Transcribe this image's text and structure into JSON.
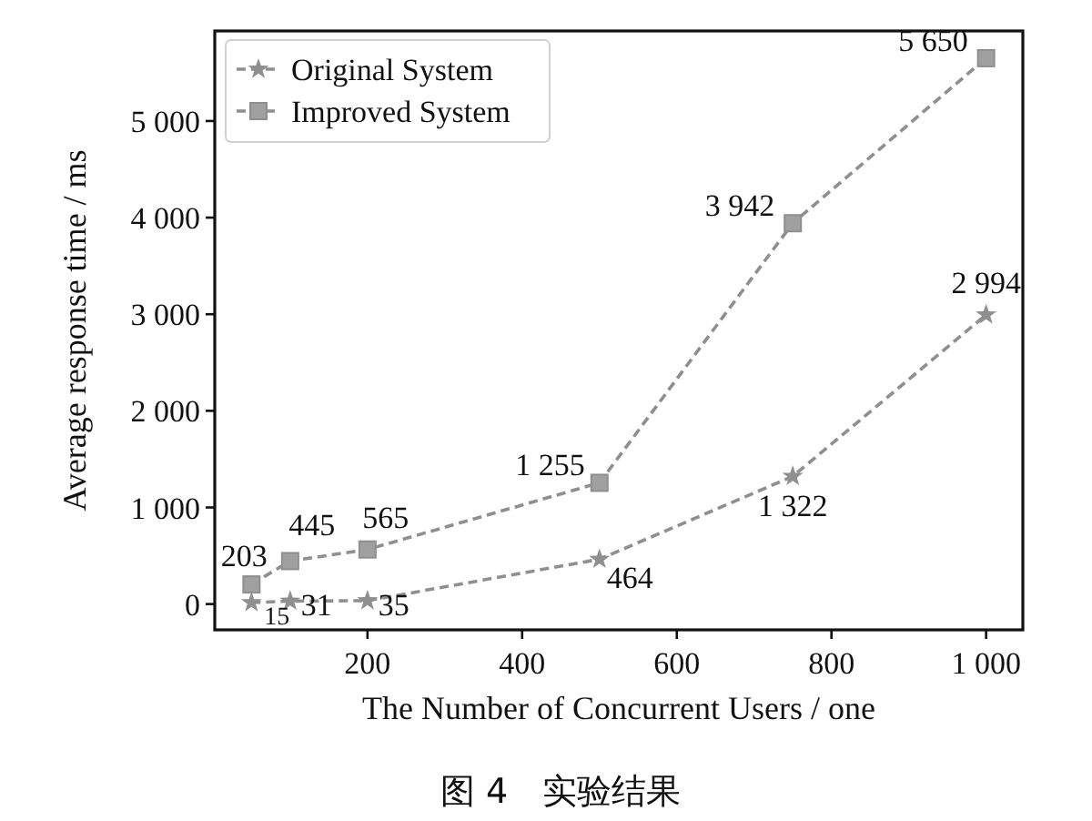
{
  "chart_data": {
    "type": "line",
    "xlabel": "The Number of Concurrent Users / one",
    "ylabel": "Average response time / ms",
    "x": [
      50,
      100,
      200,
      500,
      750,
      1000
    ],
    "series": [
      {
        "name": "Original System",
        "color": "#8f8f8f",
        "marker": "star",
        "values": [
          15,
          31,
          35,
          464,
          1322,
          2994
        ],
        "value_labels": [
          "15",
          "31",
          "35",
          "464",
          "1 322",
          "2 994"
        ]
      },
      {
        "name": "Improved System",
        "color": "#8f8f8f",
        "marker": "square",
        "values": [
          203,
          445,
          565,
          1255,
          3942,
          5650
        ],
        "value_labels": [
          "203",
          "445",
          "565",
          "1 255",
          "3 942",
          "5 650"
        ]
      }
    ],
    "xlim": [
      2.5,
      1047.5
    ],
    "ylim": [
      -267,
      5932
    ],
    "xticks": [
      200,
      400,
      600,
      800,
      {
        "value": 1000,
        "label": "1 000"
      }
    ],
    "yticks": [
      0,
      {
        "value": 1000,
        "label": "1 000"
      },
      {
        "value": 2000,
        "label": "2 000"
      },
      {
        "value": 3000,
        "label": "3 000"
      },
      {
        "value": 4000,
        "label": "4 000"
      },
      {
        "value": 5000,
        "label": "5 000"
      }
    ],
    "line_style": "dashed",
    "grid": false,
    "legend": "top left",
    "annotations": [
      "图 4　实验结果"
    ]
  }
}
